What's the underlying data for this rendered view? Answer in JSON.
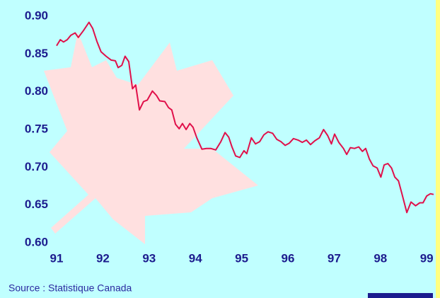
{
  "chart_data": {
    "type": "line",
    "source": "Source : Statistique Canada",
    "x": [
      91.0,
      91.08,
      91.15,
      91.23,
      91.31,
      91.4,
      91.47,
      91.58,
      91.7,
      91.78,
      91.87,
      91.96,
      92.07,
      92.18,
      92.27,
      92.33,
      92.41,
      92.48,
      92.56,
      92.64,
      92.71,
      92.79,
      92.88,
      92.96,
      93.07,
      93.16,
      93.23,
      93.34,
      93.42,
      93.49,
      93.57,
      93.65,
      93.72,
      93.8,
      93.88,
      93.95,
      94.03,
      94.14,
      94.24,
      94.33,
      94.44,
      94.55,
      94.64,
      94.72,
      94.79,
      94.87,
      94.96,
      95.05,
      95.11,
      95.21,
      95.3,
      95.39,
      95.48,
      95.57,
      95.67,
      95.76,
      95.85,
      95.94,
      96.03,
      96.12,
      96.22,
      96.31,
      96.4,
      96.49,
      96.58,
      96.68,
      96.77,
      96.86,
      96.94,
      97.01,
      97.1,
      97.2,
      97.27,
      97.35,
      97.44,
      97.53,
      97.61,
      97.68,
      97.76,
      97.84,
      97.93,
      98.01,
      98.08,
      98.16,
      98.24,
      98.31,
      98.39,
      98.46,
      98.57,
      98.66,
      98.76,
      98.85,
      98.92,
      99.0,
      99.08,
      99.15
    ],
    "values": [
      0.861,
      0.869,
      0.866,
      0.869,
      0.875,
      0.878,
      0.872,
      0.881,
      0.892,
      0.884,
      0.867,
      0.853,
      0.847,
      0.842,
      0.841,
      0.832,
      0.835,
      0.847,
      0.84,
      0.804,
      0.809,
      0.776,
      0.787,
      0.789,
      0.801,
      0.795,
      0.788,
      0.787,
      0.779,
      0.776,
      0.757,
      0.751,
      0.758,
      0.75,
      0.758,
      0.753,
      0.739,
      0.724,
      0.725,
      0.725,
      0.723,
      0.734,
      0.746,
      0.74,
      0.727,
      0.715,
      0.713,
      0.722,
      0.718,
      0.739,
      0.731,
      0.734,
      0.743,
      0.747,
      0.745,
      0.737,
      0.734,
      0.729,
      0.732,
      0.738,
      0.736,
      0.733,
      0.736,
      0.73,
      0.735,
      0.739,
      0.75,
      0.742,
      0.731,
      0.744,
      0.733,
      0.725,
      0.717,
      0.726,
      0.725,
      0.727,
      0.721,
      0.725,
      0.711,
      0.702,
      0.699,
      0.687,
      0.703,
      0.705,
      0.699,
      0.687,
      0.682,
      0.666,
      0.64,
      0.654,
      0.649,
      0.653,
      0.653,
      0.662,
      0.665,
      0.664
    ],
    "color": "#e0104a",
    "xlim": [
      91,
      99.15
    ],
    "xticks": [
      91,
      92,
      93,
      94,
      95,
      96,
      97,
      98,
      99
    ],
    "ylim": [
      0.6,
      0.9
    ],
    "yticks": [
      {
        "value": 0.6,
        "label": "0.60"
      },
      {
        "value": 0.65,
        "label": "0.65"
      },
      {
        "value": 0.7,
        "label": "0.70"
      },
      {
        "value": 0.75,
        "label": "0.75"
      },
      {
        "value": 0.8,
        "label": "0.80"
      },
      {
        "value": 0.85,
        "label": "0.85"
      },
      {
        "value": 0.9,
        "label": "0.90"
      }
    ]
  }
}
